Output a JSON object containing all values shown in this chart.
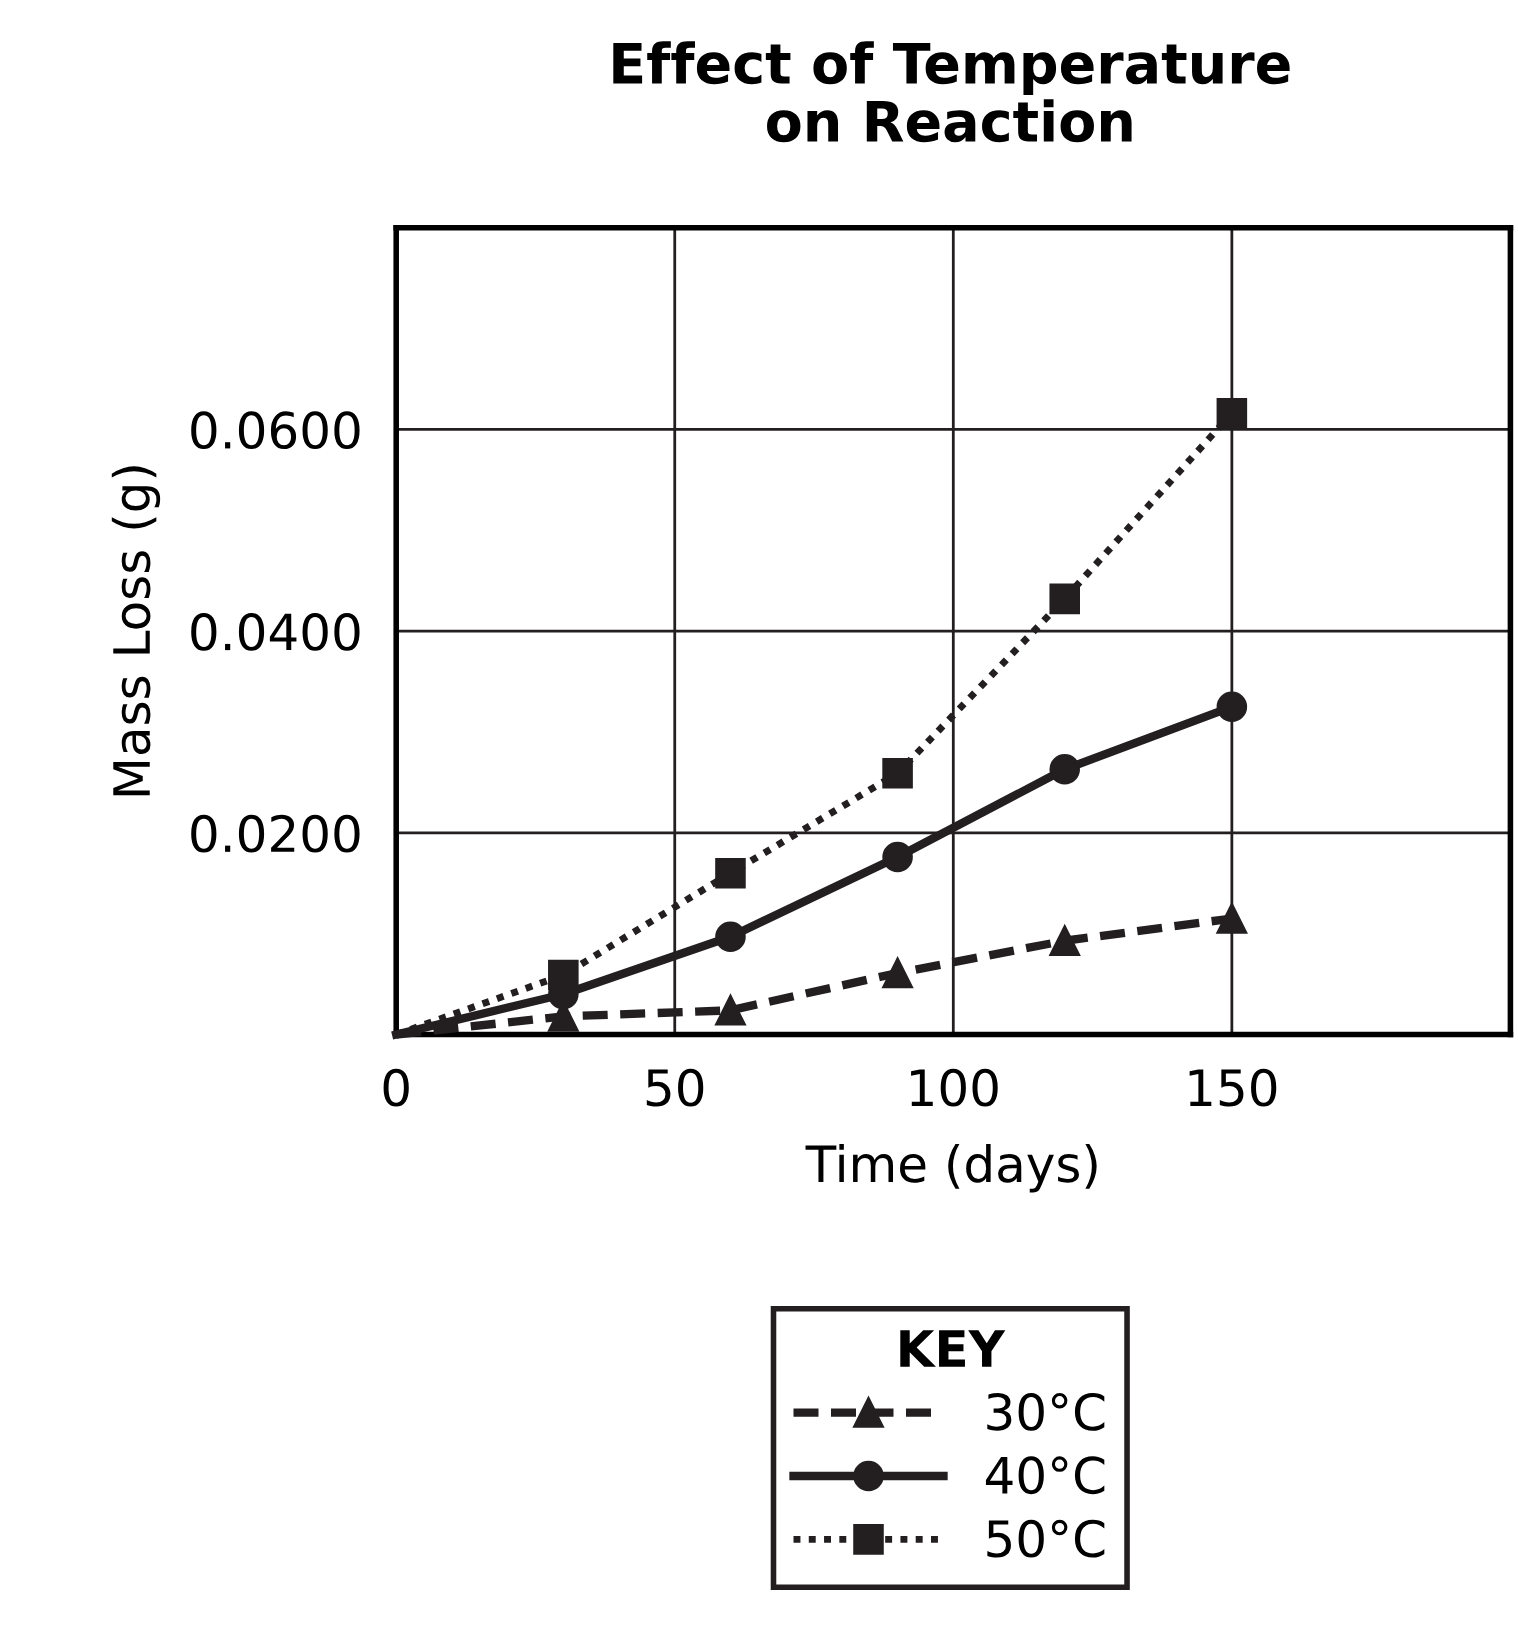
{
  "chart_data": {
    "type": "line",
    "title": "Effect of Temperature\non Reaction",
    "xlabel": "Time (days)",
    "ylabel": "Mass Loss (g)",
    "legend_title": "KEY",
    "x": [
      0,
      30,
      60,
      90,
      120,
      150
    ],
    "series": [
      {
        "name": "30°C",
        "color": "#231f20",
        "marker": "triangle",
        "line_style": "dashed",
        "values": [
          0,
          0.0018,
          0.0024,
          0.0061,
          0.0093,
          0.0115
        ]
      },
      {
        "name": "40°C",
        "color": "#231f20",
        "marker": "circle",
        "line_style": "solid",
        "values": [
          0,
          0.004,
          0.0097,
          0.0176,
          0.0263,
          0.0325
        ]
      },
      {
        "name": "50°C",
        "color": "#231f20",
        "marker": "square",
        "line_style": "dotted",
        "values": [
          0,
          0.0059,
          0.016,
          0.0259,
          0.0432,
          0.0616
        ]
      }
    ],
    "xlim": [
      0,
      200
    ],
    "xticks": [
      0,
      50,
      100,
      150
    ],
    "ylim": [
      0,
      0.08
    ],
    "yticks": [
      {
        "value": 0.02,
        "label": "0.0200"
      },
      {
        "value": 0.04,
        "label": "0.0400"
      },
      {
        "value": 0.06,
        "label": "0.0600"
      }
    ],
    "grid": true,
    "legend": "bottom"
  }
}
